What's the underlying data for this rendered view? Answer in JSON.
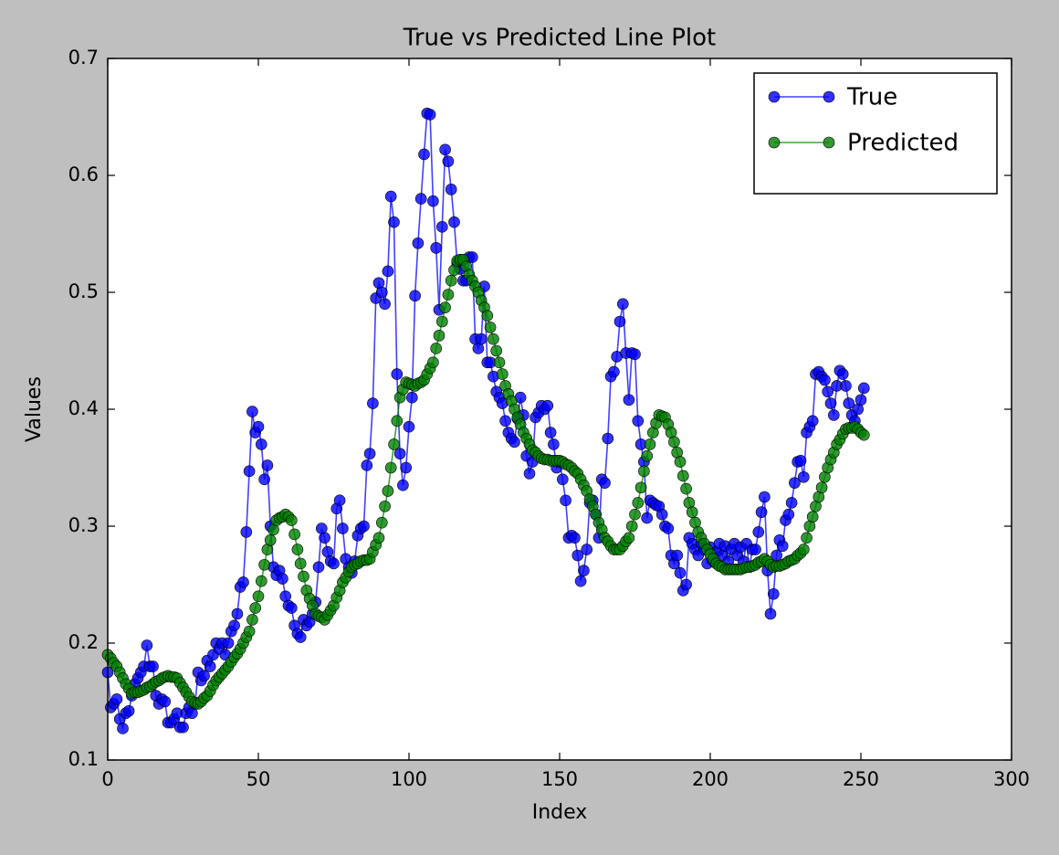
{
  "chart_data": {
    "type": "line",
    "title": "True vs Predicted Line Plot",
    "x_label": "Index",
    "y_label": "Values",
    "xlim": [
      0,
      300
    ],
    "xticks": [
      0,
      50,
      100,
      150,
      200,
      250,
      300
    ],
    "ylim": [
      0.1,
      0.7
    ],
    "yticks": [
      0.1,
      0.2,
      0.3,
      0.4,
      0.5,
      0.6,
      0.7
    ],
    "legend": "upper right",
    "series": [
      {
        "name": "True",
        "color": "#0000ff",
        "values": [
          0.175,
          0.145,
          0.148,
          0.152,
          0.135,
          0.127,
          0.14,
          0.142,
          0.155,
          0.165,
          0.17,
          0.175,
          0.18,
          0.198,
          0.18,
          0.18,
          0.155,
          0.148,
          0.152,
          0.15,
          0.132,
          0.132,
          0.135,
          0.14,
          0.128,
          0.128,
          0.14,
          0.145,
          0.14,
          0.148,
          0.175,
          0.168,
          0.172,
          0.185,
          0.18,
          0.19,
          0.2,
          0.195,
          0.2,
          0.19,
          0.2,
          0.21,
          0.215,
          0.225,
          0.248,
          0.252,
          0.295,
          0.347,
          0.398,
          0.38,
          0.385,
          0.37,
          0.34,
          0.352,
          0.3,
          0.265,
          0.258,
          0.262,
          0.255,
          0.24,
          0.232,
          0.23,
          0.215,
          0.208,
          0.205,
          0.22,
          0.215,
          0.218,
          0.225,
          0.235,
          0.265,
          0.298,
          0.29,
          0.278,
          0.27,
          0.268,
          0.315,
          0.322,
          0.298,
          0.272,
          0.265,
          0.26,
          0.27,
          0.292,
          0.298,
          0.3,
          0.352,
          0.362,
          0.405,
          0.495,
          0.508,
          0.5,
          0.49,
          0.518,
          0.582,
          0.56,
          0.43,
          0.362,
          0.335,
          0.35,
          0.385,
          0.41,
          0.497,
          0.542,
          0.58,
          0.618,
          0.653,
          0.652,
          0.578,
          0.538,
          0.485,
          0.556,
          0.622,
          0.612,
          0.588,
          0.56,
          0.525,
          0.52,
          0.51,
          0.51,
          0.53,
          0.53,
          0.46,
          0.452,
          0.46,
          0.505,
          0.44,
          0.44,
          0.428,
          0.415,
          0.41,
          0.405,
          0.39,
          0.38,
          0.375,
          0.372,
          0.392,
          0.41,
          0.395,
          0.36,
          0.345,
          0.355,
          0.393,
          0.397,
          0.403,
          0.4,
          0.403,
          0.38,
          0.37,
          0.35,
          0.355,
          0.34,
          0.322,
          0.29,
          0.292,
          0.29,
          0.275,
          0.253,
          0.262,
          0.28,
          0.32,
          0.322,
          0.31,
          0.29,
          0.34,
          0.337,
          0.375,
          0.428,
          0.432,
          0.445,
          0.475,
          0.49,
          0.448,
          0.408,
          0.448,
          0.447,
          0.39,
          0.37,
          0.355,
          0.307,
          0.322,
          0.32,
          0.318,
          0.317,
          0.31,
          0.3,
          0.298,
          0.275,
          0.268,
          0.275,
          0.26,
          0.245,
          0.25,
          0.29,
          0.285,
          0.28,
          0.275,
          0.285,
          0.28,
          0.268,
          0.282,
          0.27,
          0.278,
          0.285,
          0.275,
          0.283,
          0.27,
          0.28,
          0.285,
          0.275,
          0.282,
          0.27,
          0.285,
          0.265,
          0.28,
          0.28,
          0.295,
          0.312,
          0.325,
          0.262,
          0.225,
          0.242,
          0.275,
          0.288,
          0.283,
          0.305,
          0.31,
          0.32,
          0.337,
          0.355,
          0.356,
          0.342,
          0.38,
          0.385,
          0.39,
          0.43,
          0.432,
          0.428,
          0.425,
          0.415,
          0.405,
          0.395,
          0.42,
          0.433,
          0.43,
          0.42,
          0.405,
          0.395,
          0.39,
          0.4,
          0.408,
          0.418
        ]
      },
      {
        "name": "Predicted",
        "color": "#008000",
        "values": [
          0.19,
          0.187,
          0.183,
          0.18,
          0.175,
          0.17,
          0.165,
          0.161,
          0.157,
          0.158,
          0.158,
          0.159,
          0.16,
          0.162,
          0.163,
          0.165,
          0.167,
          0.168,
          0.17,
          0.171,
          0.172,
          0.171,
          0.171,
          0.17,
          0.166,
          0.162,
          0.158,
          0.154,
          0.15,
          0.149,
          0.148,
          0.15,
          0.153,
          0.155,
          0.159,
          0.164,
          0.168,
          0.171,
          0.174,
          0.177,
          0.18,
          0.184,
          0.188,
          0.191,
          0.195,
          0.2,
          0.205,
          0.21,
          0.22,
          0.23,
          0.24,
          0.253,
          0.267,
          0.28,
          0.288,
          0.297,
          0.305,
          0.307,
          0.308,
          0.31,
          0.308,
          0.305,
          0.293,
          0.28,
          0.268,
          0.257,
          0.245,
          0.238,
          0.232,
          0.225,
          0.223,
          0.222,
          0.22,
          0.224,
          0.228,
          0.232,
          0.239,
          0.245,
          0.252,
          0.256,
          0.261,
          0.265,
          0.267,
          0.268,
          0.27,
          0.271,
          0.271,
          0.272,
          0.278,
          0.284,
          0.29,
          0.303,
          0.317,
          0.33,
          0.35,
          0.37,
          0.39,
          0.41,
          0.417,
          0.423,
          0.422,
          0.421,
          0.42,
          0.422,
          0.423,
          0.425,
          0.43,
          0.435,
          0.44,
          0.452,
          0.463,
          0.475,
          0.487,
          0.498,
          0.51,
          0.519,
          0.527,
          0.528,
          0.528,
          0.522,
          0.515,
          0.51,
          0.505,
          0.5,
          0.493,
          0.487,
          0.48,
          0.47,
          0.46,
          0.45,
          0.44,
          0.43,
          0.42,
          0.413,
          0.407,
          0.4,
          0.393,
          0.387,
          0.38,
          0.375,
          0.37,
          0.365,
          0.363,
          0.36,
          0.358,
          0.357,
          0.357,
          0.356,
          0.356,
          0.356,
          0.356,
          0.355,
          0.353,
          0.352,
          0.35,
          0.347,
          0.345,
          0.34,
          0.335,
          0.33,
          0.323,
          0.317,
          0.31,
          0.303,
          0.297,
          0.29,
          0.287,
          0.283,
          0.28,
          0.28,
          0.28,
          0.283,
          0.287,
          0.29,
          0.3,
          0.31,
          0.32,
          0.333,
          0.347,
          0.36,
          0.37,
          0.38,
          0.388,
          0.395,
          0.394,
          0.393,
          0.387,
          0.38,
          0.372,
          0.363,
          0.355,
          0.343,
          0.332,
          0.32,
          0.312,
          0.303,
          0.295,
          0.29,
          0.285,
          0.28,
          0.276,
          0.272,
          0.268,
          0.266,
          0.265,
          0.263,
          0.263,
          0.263,
          0.263,
          0.263,
          0.263,
          0.264,
          0.265,
          0.265,
          0.266,
          0.267,
          0.269,
          0.27,
          0.272,
          0.27,
          0.267,
          0.265,
          0.266,
          0.266,
          0.267,
          0.268,
          0.27,
          0.271,
          0.272,
          0.275,
          0.277,
          0.28,
          0.29,
          0.3,
          0.308,
          0.317,
          0.325,
          0.333,
          0.342,
          0.35,
          0.357,
          0.363,
          0.37,
          0.374,
          0.379,
          0.383,
          0.384,
          0.384,
          0.385,
          0.383,
          0.38,
          0.378
        ]
      }
    ]
  }
}
